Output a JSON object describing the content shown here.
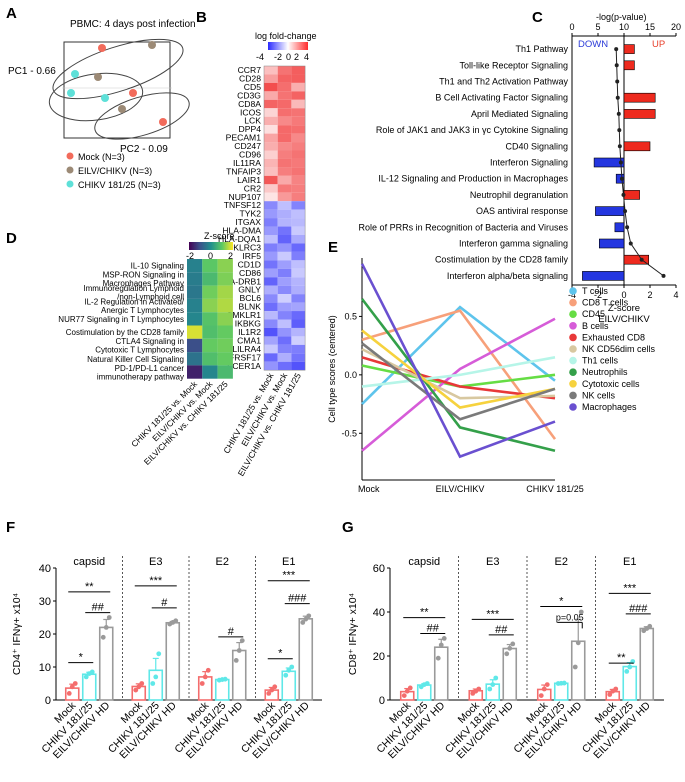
{
  "panels": {
    "A": "A",
    "B": "B",
    "C": "C",
    "D": "D",
    "E": "E",
    "F": "F",
    "G": "G"
  },
  "panelA": {
    "title": "PBMC: 4 days post infection",
    "pc1": "PC1 - 0.66",
    "pc2": "PC2 - 0.09",
    "legend": [
      {
        "label": "Mock (N=3)",
        "color": "#f26b5b"
      },
      {
        "label": "EILV/CHIKV (N=3)",
        "color": "#9c8a76"
      },
      {
        "label": "CHIKV 181/25 (N=3)",
        "color": "#5ee0d8"
      }
    ]
  },
  "panelB": {
    "title": "log fold-change",
    "scale_ticks": [
      "-4",
      "-2",
      "0",
      "2",
      "4"
    ],
    "genes": [
      "CCR7",
      "CD28",
      "CD5",
      "CD3G",
      "CD8A",
      "ICOS",
      "LCK",
      "DPP4",
      "PECAM1",
      "CD247",
      "CD96",
      "IL11RA",
      "TNFAIP3",
      "LAIR1",
      "CR2",
      "NUP107",
      "TNFSF12",
      "TYK2",
      "ITGAX",
      "HLA-DMA",
      "HLA-DQA1",
      "KLRC3",
      "IRF5",
      "CD1D",
      "CD86",
      "HLA-DRB1",
      "GNLY",
      "BCL6",
      "BLNK",
      "CMKLR1",
      "IKBKG",
      "IL1R2",
      "CMA1",
      "LILRA4",
      "TNFRSF17",
      "FCER1A"
    ],
    "columns": [
      "CHIKV 181/25 vs. Mock",
      "EILV/CHIKV vs. Mock",
      "EILV/CHIKV vs. CHIKV 181/25"
    ],
    "values": [
      [
        1.2,
        2.6,
        3.0
      ],
      [
        1.8,
        2.9,
        3.0
      ],
      [
        3.3,
        2.7,
        1.5
      ],
      [
        1.6,
        2.6,
        2.9
      ],
      [
        2.9,
        2.8,
        1.3
      ],
      [
        0.8,
        2.7,
        2.6
      ],
      [
        1.5,
        2.2,
        2.5
      ],
      [
        0.6,
        2.8,
        2.7
      ],
      [
        1.7,
        2.8,
        2.2
      ],
      [
        1.5,
        2.2,
        2.4
      ],
      [
        0.9,
        2.4,
        2.6
      ],
      [
        1.4,
        2.6,
        2.5
      ],
      [
        1.2,
        2.4,
        2.6
      ],
      [
        3.1,
        1.6,
        2.3
      ],
      [
        1.0,
        2.5,
        2.4
      ],
      [
        0.5,
        1.9,
        2.4
      ],
      [
        -2.2,
        -1.2,
        -2.3
      ],
      [
        -1.9,
        -1.5,
        -1.2
      ],
      [
        -2.4,
        -1.4,
        -1.3
      ],
      [
        -1.9,
        -2.6,
        -1.0
      ],
      [
        -1.2,
        -2.9,
        -1.6
      ],
      [
        -2.4,
        -2.0,
        -2.8
      ],
      [
        -1.9,
        -1.0,
        -2.4
      ],
      [
        -2.6,
        -1.8,
        -1.2
      ],
      [
        -1.8,
        -2.4,
        -1.0
      ],
      [
        -2.9,
        -1.8,
        -1.4
      ],
      [
        -1.5,
        -2.2,
        -1.5
      ],
      [
        -2.2,
        -0.9,
        -2.3
      ],
      [
        -2.7,
        -1.8,
        -1.7
      ],
      [
        -1.3,
        -2.3,
        -2.8
      ],
      [
        -2.2,
        -1.2,
        -3.0
      ],
      [
        -3.2,
        -2.0,
        -1.4
      ],
      [
        -1.7,
        -2.7,
        -0.9
      ],
      [
        -1.0,
        -2.3,
        -2.4
      ],
      [
        -2.8,
        -1.5,
        -2.6
      ],
      [
        -2.0,
        -2.7,
        -3.2
      ]
    ]
  },
  "panelC": {
    "top_axis_label": "-log(p-value)",
    "top_ticks": [
      "0",
      "5",
      "10",
      "15",
      "20"
    ],
    "bottom_ticks": [
      "-4",
      "-2",
      "0",
      "2",
      "4"
    ],
    "bottom_label1": "Z-score",
    "bottom_label2": "EILV/CHIKV",
    "down": "DOWN",
    "up": "UP",
    "pathways": [
      "Th1 Pathway",
      "Toll-like Receptor Signaling",
      "Th1 and Th2 Activation Pathway",
      "B Cell Activating Factor Signaling",
      "April Mediated Signaling",
      "Role of JAK1 and JAK3 in γc Cytokine Signaling",
      "CD40 Signaling",
      "Interferon Signaling",
      "IL-12 Signaling and Production in Macrophages",
      "Neutrophil degranulation",
      "OAS antiviral response",
      "Role of PRRs in Recognition of Bacteria and Viruses",
      "Interferon gamma signaling",
      "Costimulation by the CD28 family",
      "Interferon alpha/beta signaling"
    ],
    "zscores": [
      0.8,
      0.8,
      0,
      2.4,
      2.4,
      0,
      2.0,
      -2.3,
      -0.6,
      1.2,
      -2.2,
      -0.7,
      -1.9,
      1.9,
      -3.2
    ],
    "neglogp": [
      8.5,
      8.6,
      8.7,
      8.8,
      9.0,
      9.1,
      9.2,
      9.4,
      9.6,
      9.9,
      10.2,
      10.6,
      11.3,
      13.4,
      17.6
    ]
  },
  "panelD": {
    "title": "Z-score",
    "scale_ticks": [
      "-2",
      "0",
      "2"
    ],
    "rows": [
      "IL-10 Signaling",
      "MSP-RON Signaling in\nMacrophages Pathway",
      "Immunoregulation Lymphoid\n/non-Lymphoid cell",
      "IL-2 Regulation in Activated/\nAnergic T Lymphocytes",
      "NUR77 Signaling in T Lymphocytes",
      "Costimulation by the CD28 family",
      "CTLA4 Signaling in\nCytotoxic T Lymphocytes",
      "Natural Killer Cell Signaling",
      "PD-1/PD-L1 cancer\nimmunotherapy pathway"
    ],
    "columns": [
      "CHIKV 181/25 vs. Mock",
      "EILV/CHIKV vs. Mock",
      "EILV/CHIKV vs. CHIKV 181/25"
    ],
    "values": [
      [
        -0.3,
        1.2,
        1.6
      ],
      [
        -0.4,
        0.9,
        1.5
      ],
      [
        -0.5,
        1.4,
        1.8
      ],
      [
        -0.3,
        1.6,
        1.9
      ],
      [
        -0.2,
        1.1,
        1.6
      ],
      [
        2.2,
        1.0,
        1.3
      ],
      [
        -1.3,
        1.3,
        1.4
      ],
      [
        -0.6,
        1.0,
        1.3
      ],
      [
        -2.0,
        -0.2,
        0.9
      ]
    ]
  },
  "panelE": {
    "ylabel": "Cell type scores (centered)",
    "yticks": [
      "0.5",
      "0.0",
      "-0.5"
    ],
    "xticks": [
      "Mock",
      "EILV/CHIKV",
      "CHIKV 181/25"
    ],
    "series": [
      {
        "name": "T cells",
        "color": "#5ec4ec",
        "values": [
          -0.25,
          0.58,
          -0.05
        ]
      },
      {
        "name": "CD8 T cells",
        "color": "#f7a07a",
        "values": [
          0.3,
          0.55,
          -0.55
        ]
      },
      {
        "name": "CD45",
        "color": "#66dd44",
        "values": [
          0.08,
          -0.1,
          0.0
        ]
      },
      {
        "name": "B cells",
        "color": "#d65cd8",
        "values": [
          -0.65,
          0.05,
          0.48
        ]
      },
      {
        "name": "Exhausted CD8",
        "color": "#e83838",
        "values": [
          0.15,
          -0.1,
          -0.2
        ]
      },
      {
        "name": "NK CD56dim cells",
        "color": "#d8c8a0",
        "values": [
          0.22,
          -0.2,
          -0.18
        ]
      },
      {
        "name": "Th1 cells",
        "color": "#b6f5e8",
        "values": [
          -0.1,
          0.0,
          0.15
        ]
      },
      {
        "name": "Neutrophils",
        "color": "#34a04a",
        "values": [
          0.65,
          -0.45,
          -0.65
        ]
      },
      {
        "name": "Cytotoxic cells",
        "color": "#f6d23e",
        "values": [
          0.38,
          -0.28,
          -0.12
        ]
      },
      {
        "name": "NK cells",
        "color": "#7a7a7a",
        "values": [
          0.27,
          -0.38,
          -0.12
        ]
      },
      {
        "name": "Macrophages",
        "color": "#6a50d0",
        "values": [
          0.95,
          -0.7,
          -0.4
        ]
      }
    ]
  },
  "chart_data": [
    {
      "type": "bar",
      "title": "F",
      "ylabel": "CD4+ IFNγ+ x10^4",
      "ylim": [
        0,
        40
      ],
      "yticks": [
        "0",
        "10",
        "20",
        "30",
        "40"
      ],
      "groups": [
        "capsid",
        "E3",
        "E2",
        "E1"
      ],
      "categories": [
        "Mock",
        "CHIKV 181/25",
        "EILV/CHIKV HD"
      ],
      "series": [
        {
          "name": "capsid",
          "values": [
            3.6,
            7.8,
            22.0
          ]
        },
        {
          "name": "E3",
          "values": [
            4.1,
            9.0,
            23.4
          ]
        },
        {
          "name": "E2",
          "values": [
            7.0,
            6.2,
            15.0
          ]
        },
        {
          "name": "E1",
          "values": [
            3.0,
            8.7,
            24.6
          ]
        }
      ],
      "points": [
        [
          [
            2,
            4,
            5
          ],
          [
            7,
            8,
            8.5
          ],
          [
            19,
            22,
            25
          ]
        ],
        [
          [
            3,
            4,
            5
          ],
          [
            5,
            7,
            14
          ],
          [
            23,
            23.5,
            24
          ]
        ],
        [
          [
            5,
            7,
            9
          ],
          [
            6,
            6.2,
            6.3
          ],
          [
            12,
            15,
            18
          ]
        ],
        [
          [
            2,
            3,
            4
          ],
          [
            7.5,
            9,
            10
          ],
          [
            23.5,
            24.5,
            25.5
          ]
        ]
      ],
      "annotations": [
        [
          "*",
          "**",
          "##"
        ],
        [
          "***",
          "#"
        ],
        [
          "#"
        ],
        [
          "*",
          "***",
          "###"
        ]
      ]
    },
    {
      "type": "bar",
      "title": "G",
      "ylabel": "CD8+ IFNγ+ x10^4",
      "ylim": [
        0,
        60
      ],
      "yticks": [
        "0",
        "20",
        "40",
        "60"
      ],
      "groups": [
        "capsid",
        "E3",
        "E2",
        "E1"
      ],
      "categories": [
        "Mock",
        "CHIKV 181/25",
        "EILV/CHIKV HD"
      ],
      "series": [
        {
          "name": "capsid",
          "values": [
            3.8,
            6.8,
            24.0
          ]
        },
        {
          "name": "E3",
          "values": [
            4.2,
            7.2,
            23.4
          ]
        },
        {
          "name": "E2",
          "values": [
            4.8,
            7.6,
            26.7
          ]
        },
        {
          "name": "E1",
          "values": [
            3.8,
            15.2,
            32.5
          ]
        }
      ],
      "points": [
        [
          [
            2,
            4,
            5.5
          ],
          [
            6,
            7,
            7.5
          ],
          [
            19,
            25,
            28
          ]
        ],
        [
          [
            3,
            4,
            5
          ],
          [
            5,
            7,
            10
          ],
          [
            21,
            23.5,
            25.5
          ]
        ],
        [
          [
            2,
            5,
            7
          ],
          [
            7.5,
            7.6,
            7.7
          ],
          [
            15,
            26,
            40
          ]
        ],
        [
          [
            2.5,
            4,
            5
          ],
          [
            13,
            15,
            17.5
          ],
          [
            31.5,
            32.5,
            33.5
          ]
        ]
      ],
      "annotations": [
        [
          "**",
          "##"
        ],
        [
          "***",
          "##"
        ],
        [
          "*",
          "p=0.05"
        ],
        [
          "**",
          "***",
          "###"
        ]
      ]
    }
  ],
  "panelF": {
    "ylabel": "CD4⁺ IFNγ+ x10⁴",
    "groups": [
      "capsid",
      "E3",
      "E2",
      "E1"
    ],
    "xlabels": [
      "Mock",
      "CHIKV 181/25",
      "EILV/CHIKV HD"
    ]
  },
  "panelG": {
    "ylabel": "CD8⁺ IFNγ+ x10⁴",
    "groups": [
      "capsid",
      "E3",
      "E2",
      "E1"
    ],
    "xlabels": [
      "Mock",
      "CHIKV 181/25",
      "EILV/CHIKV HD"
    ]
  }
}
